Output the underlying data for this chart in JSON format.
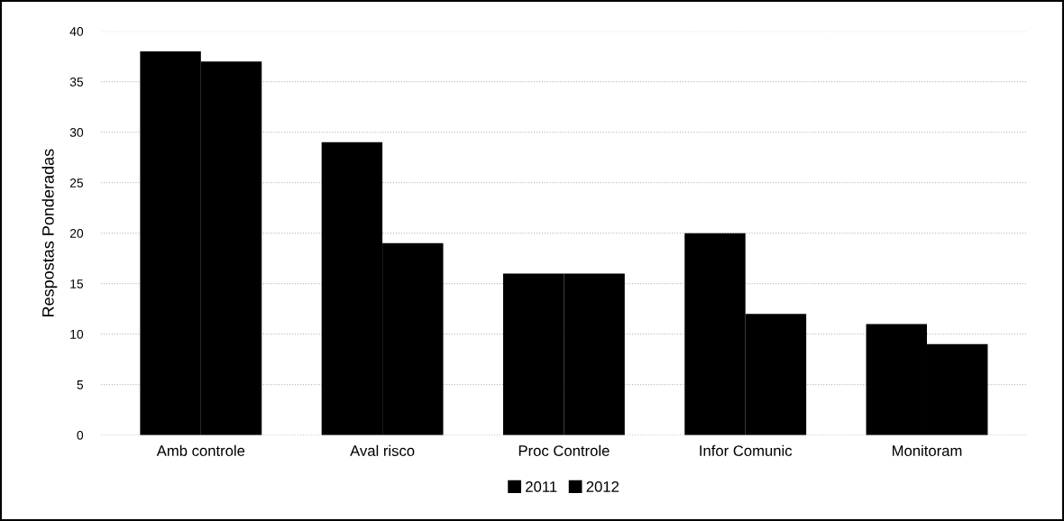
{
  "chart_data": {
    "type": "bar",
    "ylabel": "Respostas Ponderadas",
    "categories": [
      "Amb controle",
      "Aval risco",
      "Proc Controle",
      "Infor Comunic",
      "Monitoram"
    ],
    "series": [
      {
        "name": "2011",
        "color": "#000000",
        "values": [
          38,
          29,
          16,
          20,
          11
        ]
      },
      {
        "name": "2012",
        "color": "#000000",
        "values": [
          37,
          19,
          16,
          12,
          9
        ]
      }
    ],
    "ylim": [
      0,
      40
    ],
    "yticks": [
      0,
      5,
      10,
      15,
      20,
      25,
      30,
      35,
      40
    ],
    "grid": "y",
    "legend": "bottom"
  }
}
